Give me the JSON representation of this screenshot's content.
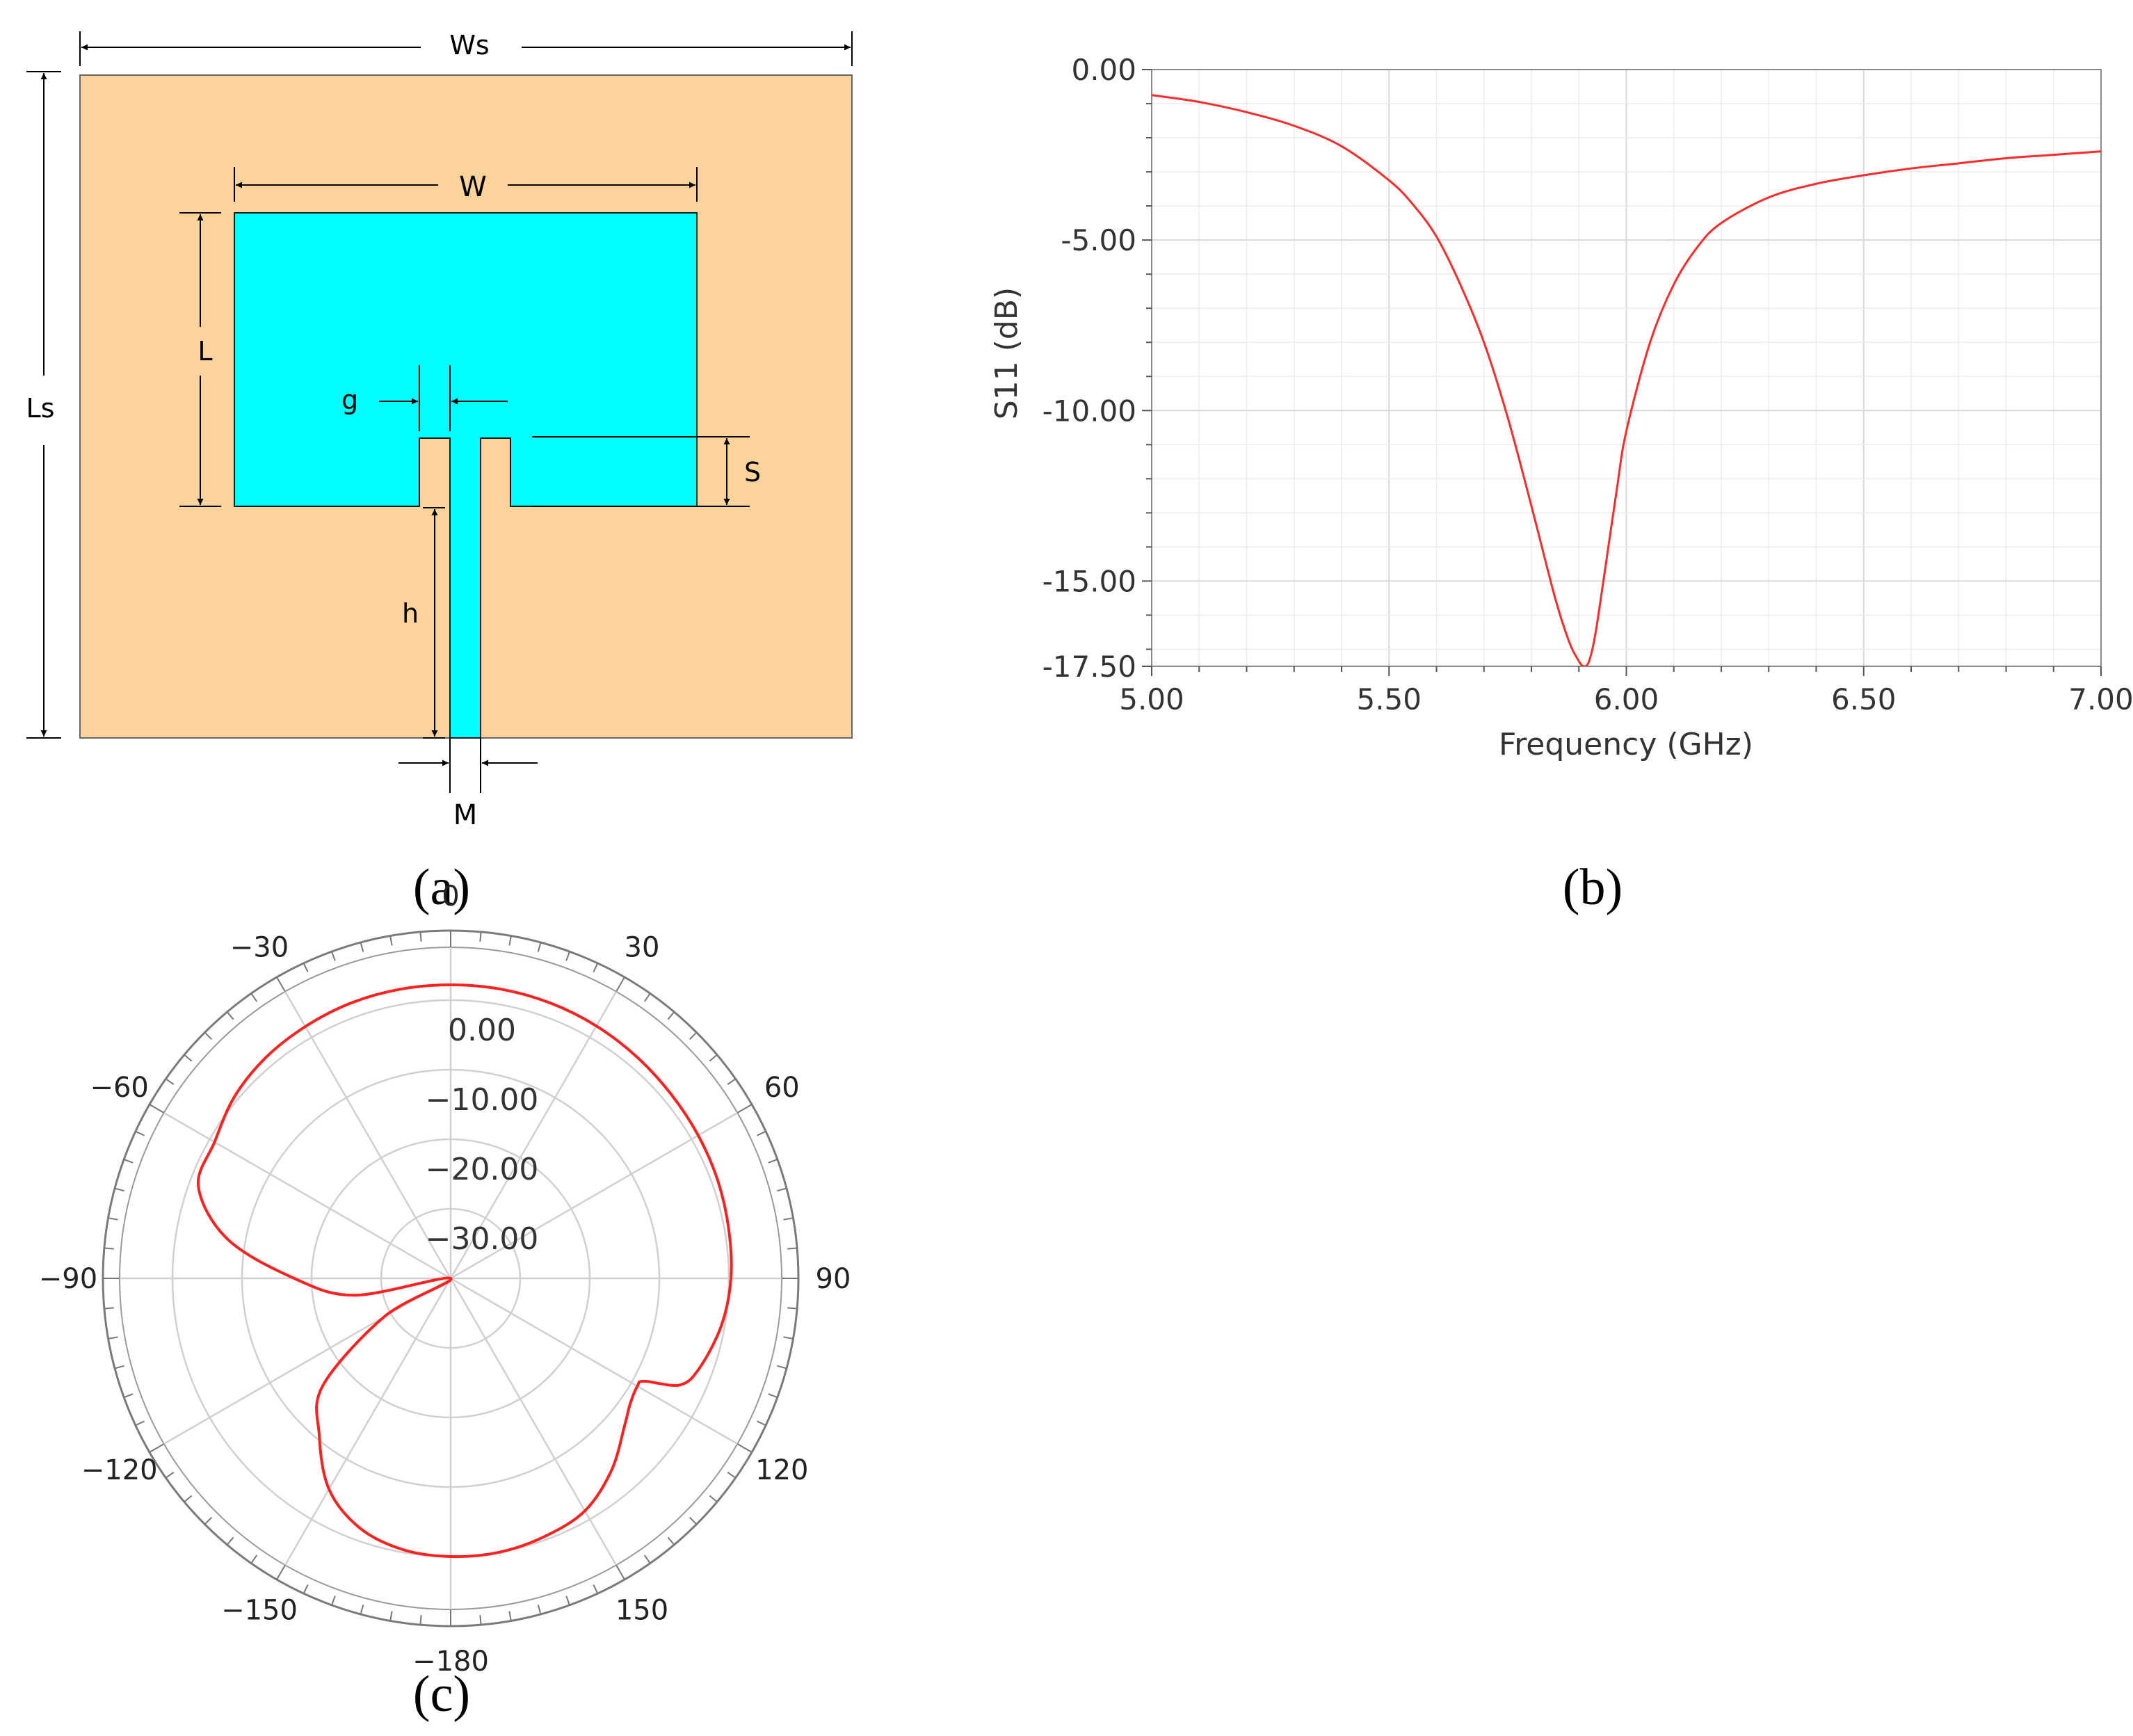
{
  "panel_a": {
    "labels": {
      "Ws": "Ws",
      "W": "W",
      "L": "L",
      "Ls": "Ls",
      "g": "g",
      "S": "S",
      "h": "h",
      "M": "M"
    },
    "colors": {
      "substrate": "#FCD49B",
      "patch": "#00FFFF"
    },
    "caption": "(a)"
  },
  "panel_b": {
    "caption": "(b)",
    "color": "#FF2A2A"
  },
  "panel_c": {
    "caption": "(c)",
    "color": "#FF2020"
  },
  "chart_data": [
    {
      "type": "line",
      "xlabel": "Frequency (GHz)",
      "ylabel": "S11 (dB)",
      "xlim": [
        5.0,
        7.0
      ],
      "ylim": [
        -17.5,
        0.0
      ],
      "xticks": [
        "5.00",
        "5.50",
        "6.00",
        "6.50",
        "7.00"
      ],
      "xtick_values": [
        5.0,
        5.5,
        6.0,
        6.5,
        7.0
      ],
      "yticks": [
        "0.00",
        "-5.00",
        "-10.00",
        "-15.00",
        "-17.50"
      ],
      "ytick_values": [
        0.0,
        -5.0,
        -10.0,
        -15.0,
        -17.5
      ],
      "grid": true,
      "series": [
        {
          "x": [
            5.0,
            5.1,
            5.2,
            5.3,
            5.4,
            5.5,
            5.55,
            5.6,
            5.65,
            5.7,
            5.75,
            5.8,
            5.85,
            5.88,
            5.9,
            5.91,
            5.92,
            5.93,
            5.94,
            5.96,
            5.98,
            6.0,
            6.05,
            6.1,
            6.15,
            6.2,
            6.3,
            6.4,
            6.5,
            6.6,
            6.7,
            6.8,
            6.9,
            7.0
          ],
          "y": [
            -0.75,
            -0.95,
            -1.25,
            -1.65,
            -2.25,
            -3.25,
            -3.95,
            -4.9,
            -6.3,
            -8.0,
            -10.2,
            -12.8,
            -15.5,
            -16.8,
            -17.35,
            -17.5,
            -17.4,
            -16.9,
            -16.1,
            -14.2,
            -12.3,
            -10.6,
            -8.0,
            -6.3,
            -5.2,
            -4.5,
            -3.75,
            -3.35,
            -3.1,
            -2.9,
            -2.75,
            -2.6,
            -2.5,
            -2.4
          ]
        }
      ]
    },
    {
      "type": "polar",
      "angle_ticks": [
        "0",
        "30",
        "60",
        "90",
        "120",
        "150",
        "-180",
        "-150",
        "-120",
        "-90",
        "-60",
        "-30"
      ],
      "angle_tick_values": [
        0,
        30,
        60,
        90,
        120,
        150,
        180,
        -150,
        -120,
        -90,
        -60,
        -30
      ],
      "radial_ticks": [
        "0.00",
        "−10.00",
        "−20.00",
        "−30.00"
      ],
      "radial_tick_values": [
        0,
        -10,
        -20,
        -30
      ],
      "rlim": [
        -40,
        10
      ],
      "grid": true,
      "series": [
        {
          "theta": [
            0,
            10,
            20,
            30,
            40,
            50,
            60,
            70,
            80,
            90,
            100,
            110,
            115,
            118,
            120,
            125,
            130,
            140,
            150,
            160,
            170,
            180,
            190,
            200,
            210,
            220,
            230,
            240,
            250,
            260,
            270,
            280,
            290,
            300,
            310,
            320,
            330,
            340,
            350,
            360
          ],
          "r_db": [
            2.2,
            2.2,
            2.1,
            1.9,
            1.6,
            1.3,
            1.1,
            0.9,
            0.6,
            0.3,
            -0.5,
            -2.0,
            -3.7,
            -8.5,
            -9.0,
            -8.5,
            -7.3,
            -4.0,
            -1.4,
            -0.5,
            0.0,
            0.0,
            -0.4,
            -1.8,
            -5.0,
            -10.6,
            -16.0,
            -29.0,
            -40.0,
            -26.0,
            -17.5,
            -7.4,
            -1.4,
            -0.8,
            0.6,
            1.4,
            1.8,
            2.1,
            2.2,
            2.2
          ]
        }
      ]
    }
  ]
}
